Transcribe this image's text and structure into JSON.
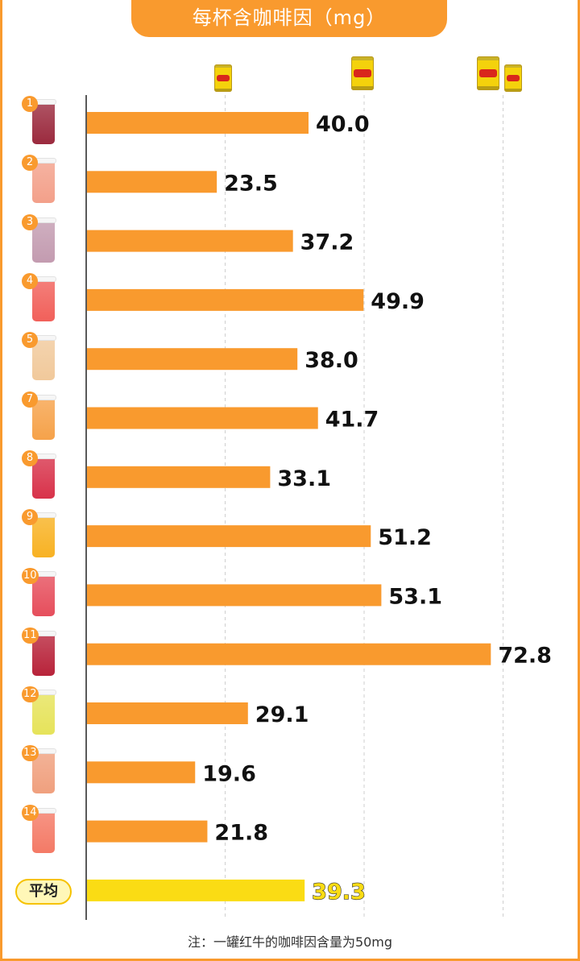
{
  "title": "每杯含咖啡因（mg）",
  "footnote": "注：一罐红牛的咖啡因含量为50mg",
  "colors": {
    "accent": "#f99a2e",
    "bar": "#f99a2e",
    "average_bar": "#fadc14",
    "average_label": "#fadc14"
  },
  "average_label": "平均",
  "reference_icons": [
    "red-bull-can-half",
    "red-bull-can-full",
    "red-bull-cans-one-and-half"
  ],
  "chart_data": {
    "type": "bar",
    "orientation": "horizontal",
    "title": "每杯含咖啡因（mg）",
    "categories": [
      "1",
      "2",
      "3",
      "4",
      "5",
      "7",
      "8",
      "9",
      "10",
      "11",
      "12",
      "13",
      "14",
      "平均"
    ],
    "values": [
      40.0,
      23.5,
      37.2,
      49.9,
      38.0,
      41.7,
      33.1,
      51.2,
      53.1,
      72.8,
      29.1,
      19.6,
      21.8,
      39.3
    ],
    "value_labels": [
      "40.0",
      "23.5",
      "37.2",
      "49.9",
      "38.0",
      "41.7",
      "33.1",
      "51.2",
      "53.1",
      "72.8",
      "29.1",
      "19.6",
      "21.8",
      "39.3"
    ],
    "reference_lines": [
      25,
      50,
      75
    ],
    "xlim": [
      0,
      75
    ],
    "grid": "vertical dashed",
    "legend": "none"
  },
  "cups": [
    {
      "rank": "1",
      "color": "#9b2a3e"
    },
    {
      "rank": "2",
      "color": "#f3a08a"
    },
    {
      "rank": "3",
      "color": "#c39bb0"
    },
    {
      "rank": "4",
      "color": "#f1605a"
    },
    {
      "rank": "5",
      "color": "#f1c99b"
    },
    {
      "rank": "7",
      "color": "#f6a24a"
    },
    {
      "rank": "8",
      "color": "#d8324a"
    },
    {
      "rank": "9",
      "color": "#f8b223"
    },
    {
      "rank": "10",
      "color": "#e64e5c"
    },
    {
      "rank": "11",
      "color": "#b8233a"
    },
    {
      "rank": "12",
      "color": "#e6e35a"
    },
    {
      "rank": "13",
      "color": "#f0a07e"
    },
    {
      "rank": "14",
      "color": "#f47a66"
    }
  ]
}
